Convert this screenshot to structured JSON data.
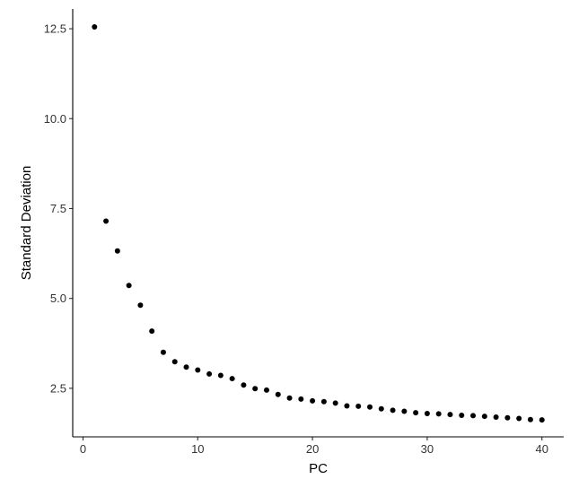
{
  "chart_data": {
    "type": "scatter",
    "xlabel": "PC",
    "ylabel": "Standard Deviation",
    "xlim": [
      -0.9,
      41.9
    ],
    "ylim": [
      1.15,
      13.05
    ],
    "x_ticks": [
      0,
      10,
      20,
      30,
      40
    ],
    "x_tick_labels": [
      "0",
      "10",
      "20",
      "30",
      "40"
    ],
    "y_ticks": [
      2.5,
      5.0,
      7.5,
      10.0,
      12.5
    ],
    "y_tick_labels": [
      "2.5",
      "5.0",
      "7.5",
      "10.0",
      "12.5"
    ],
    "grid": false,
    "legend": "none",
    "point_color": "#000000",
    "x": [
      1,
      2,
      3,
      4,
      5,
      6,
      7,
      8,
      9,
      10,
      11,
      12,
      13,
      14,
      15,
      16,
      17,
      18,
      19,
      20,
      21,
      22,
      23,
      24,
      25,
      26,
      27,
      28,
      29,
      30,
      31,
      32,
      33,
      34,
      35,
      36,
      37,
      38,
      39,
      40
    ],
    "y": [
      12.55,
      7.15,
      6.32,
      5.36,
      4.81,
      4.09,
      3.5,
      3.24,
      3.09,
      3.01,
      2.9,
      2.86,
      2.77,
      2.59,
      2.49,
      2.45,
      2.33,
      2.23,
      2.2,
      2.15,
      2.13,
      2.09,
      2.01,
      2.0,
      1.98,
      1.93,
      1.89,
      1.86,
      1.82,
      1.8,
      1.79,
      1.77,
      1.75,
      1.74,
      1.72,
      1.7,
      1.68,
      1.66,
      1.63,
      1.62
    ]
  }
}
